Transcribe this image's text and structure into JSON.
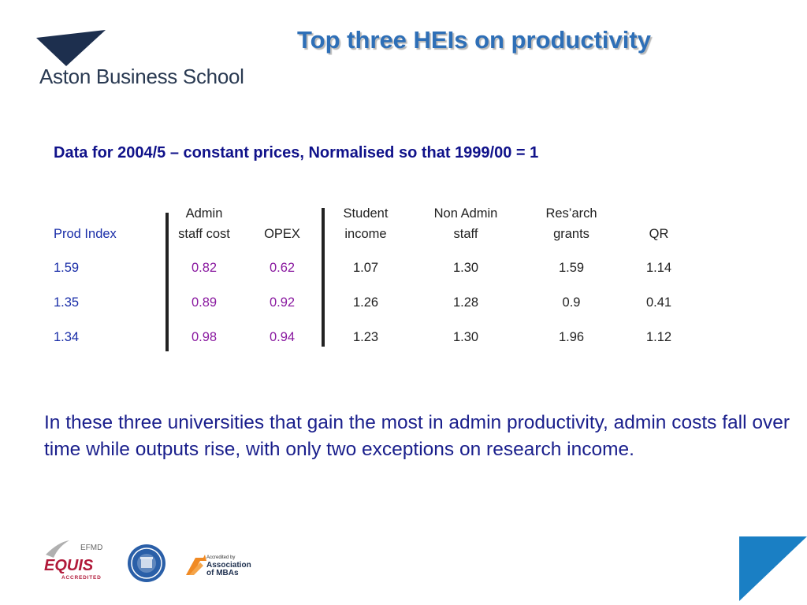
{
  "header": {
    "logo_text": "Aston Business School",
    "title": "Top three HEIs on productivity"
  },
  "subtitle": "Data for 2004/5 – constant prices, Normalised  so that 1999/00 = 1",
  "table": {
    "prod_index_header": "Prod Index",
    "headers": [
      {
        "line1": "Admin",
        "line2": "staff cost"
      },
      {
        "line1": "",
        "line2": "OPEX"
      },
      {
        "line1": "Student",
        "line2": "income"
      },
      {
        "line1": "Non Admin",
        "line2": "staff"
      },
      {
        "line1": "Res’arch",
        "line2": "grants"
      },
      {
        "line1": "",
        "line2": "QR"
      }
    ],
    "rows": [
      {
        "prod_index": "1.59",
        "admin_staff_cost": "0.82",
        "opex": "0.62",
        "student_income": "1.07",
        "non_admin_staff": "1.30",
        "research_grants": "1.59",
        "qr": "1.14"
      },
      {
        "prod_index": "1.35",
        "admin_staff_cost": "0.89",
        "opex": "0.92",
        "student_income": "1.26",
        "non_admin_staff": "1.28",
        "research_grants": "0.9",
        "qr": "0.41"
      },
      {
        "prod_index": "1.34",
        "admin_staff_cost": "0.98",
        "opex": "0.94",
        "student_income": "1.23",
        "non_admin_staff": "1.30",
        "research_grants": "1.96",
        "qr": "1.12"
      }
    ]
  },
  "paragraph": "In these three universities that gain the most in admin productivity, admin costs fall over time while outputs rise, with only two exceptions on research income.",
  "footer": {
    "efmd_label": "EFMD",
    "equis_label": "EQUIS",
    "accredited_label": "ACCREDITED",
    "amba_small": "Accredited by",
    "amba_line1": "Association",
    "amba_line2": "of MBAs"
  },
  "colors": {
    "title": "#2e6fb7",
    "subtitle": "#10128a",
    "prod_index": "#1a2ea8",
    "admin_values": "#8a1aa0",
    "corner": "#1a7fc4"
  }
}
